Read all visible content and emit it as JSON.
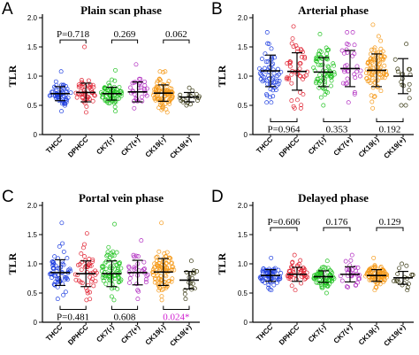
{
  "chart_data": [
    {
      "type": "scatter",
      "panel": "A",
      "title": "Plain scan phase",
      "ylabel": "TLR",
      "ylim": [
        0,
        2.0
      ],
      "yticks": [
        "0",
        "0.5",
        "1.0",
        "1.5",
        "2.0"
      ],
      "categories": [
        "THCC",
        "DPHCC",
        "CK7(-)",
        "CK7(+)",
        "CK19(-)",
        "CK19(+)"
      ],
      "series_colors": [
        "#1f3fe0",
        "#e02030",
        "#22c322",
        "#b02cc0",
        "#f59a1a",
        "#3a3a14"
      ],
      "groups": [
        {
          "mean": 0.7,
          "sd": 0.12,
          "n": 60,
          "min": 0.4,
          "max": 1.08
        },
        {
          "mean": 0.72,
          "sd": 0.16,
          "n": 45,
          "min": 0.38,
          "max": 1.5
        },
        {
          "mean": 0.7,
          "sd": 0.11,
          "n": 70,
          "min": 0.4,
          "max": 1.1
        },
        {
          "mean": 0.73,
          "sd": 0.17,
          "n": 30,
          "min": 0.45,
          "max": 1.2
        },
        {
          "mean": 0.71,
          "sd": 0.14,
          "n": 90,
          "min": 0.38,
          "max": 1.08
        },
        {
          "mean": 0.64,
          "sd": 0.08,
          "n": 18,
          "min": 0.5,
          "max": 0.8
        }
      ],
      "comparisons": [
        {
          "pair": [
            0,
            1
          ],
          "p": "P=0.718",
          "position": "above",
          "significant": false
        },
        {
          "pair": [
            2,
            3
          ],
          "p": "0.269",
          "position": "above",
          "significant": false
        },
        {
          "pair": [
            4,
            5
          ],
          "p": "0.062",
          "position": "above",
          "significant": false
        }
      ]
    },
    {
      "type": "scatter",
      "panel": "B",
      "title": "Arterial phase",
      "ylabel": "TLR",
      "ylim": [
        0,
        2.0
      ],
      "yticks": [
        "0",
        "0.5",
        "1.0",
        "1.5",
        "2.0"
      ],
      "categories": [
        "THCC",
        "DPHCC",
        "CK7(-)",
        "CK7(+)",
        "CK19(-)",
        "CK19(+)"
      ],
      "series_colors": [
        "#1f3fe0",
        "#e02030",
        "#22c322",
        "#b02cc0",
        "#f59a1a",
        "#3a3a14"
      ],
      "groups": [
        {
          "mean": 1.09,
          "sd": 0.27,
          "n": 60,
          "min": 0.55,
          "max": 1.75
        },
        {
          "mean": 1.08,
          "sd": 0.32,
          "n": 45,
          "min": 0.45,
          "max": 1.85
        },
        {
          "mean": 1.07,
          "sd": 0.25,
          "n": 70,
          "min": 0.5,
          "max": 1.72
        },
        {
          "mean": 1.13,
          "sd": 0.31,
          "n": 30,
          "min": 0.55,
          "max": 1.75
        },
        {
          "mean": 1.1,
          "sd": 0.28,
          "n": 90,
          "min": 0.45,
          "max": 1.88
        },
        {
          "mean": 1.0,
          "sd": 0.3,
          "n": 18,
          "min": 0.5,
          "max": 1.55
        }
      ],
      "comparisons": [
        {
          "pair": [
            0,
            1
          ],
          "p": "P=0.964",
          "position": "below",
          "significant": false
        },
        {
          "pair": [
            2,
            3
          ],
          "p": "0.353",
          "position": "below",
          "significant": false
        },
        {
          "pair": [
            4,
            5
          ],
          "p": "0.192",
          "position": "below",
          "significant": false
        }
      ]
    },
    {
      "type": "scatter",
      "panel": "C",
      "title": "Portal vein phase",
      "ylabel": "TLR",
      "ylim": [
        0,
        2.0
      ],
      "yticks": [
        "0",
        "0.5",
        "1.0",
        "1.5",
        "2.0"
      ],
      "categories": [
        "THCC",
        "DPHCC",
        "CK7(-)",
        "CK7(+)",
        "CK19(-)",
        "CK19(+)"
      ],
      "series_colors": [
        "#1f3fe0",
        "#e02030",
        "#22c322",
        "#b02cc0",
        "#f59a1a",
        "#3a3a14"
      ],
      "groups": [
        {
          "mean": 0.85,
          "sd": 0.22,
          "n": 60,
          "min": 0.4,
          "max": 1.7
        },
        {
          "mean": 0.83,
          "sd": 0.22,
          "n": 45,
          "min": 0.38,
          "max": 1.52
        },
        {
          "mean": 0.83,
          "sd": 0.22,
          "n": 70,
          "min": 0.38,
          "max": 1.68
        },
        {
          "mean": 0.85,
          "sd": 0.21,
          "n": 30,
          "min": 0.4,
          "max": 1.4
        },
        {
          "mean": 0.86,
          "sd": 0.23,
          "n": 90,
          "min": 0.38,
          "max": 1.7
        },
        {
          "mean": 0.72,
          "sd": 0.15,
          "n": 18,
          "min": 0.4,
          "max": 1.05
        }
      ],
      "comparisons": [
        {
          "pair": [
            0,
            1
          ],
          "p": "P=0.481",
          "position": "below",
          "significant": false
        },
        {
          "pair": [
            2,
            3
          ],
          "p": "0.608",
          "position": "below",
          "significant": false
        },
        {
          "pair": [
            4,
            5
          ],
          "p": "0.024*",
          "position": "below",
          "significant": true
        }
      ]
    },
    {
      "type": "scatter",
      "panel": "D",
      "title": "Delayed phase",
      "ylabel": "TLR",
      "ylim": [
        0,
        2.0
      ],
      "yticks": [
        "0",
        "0.5",
        "1.0",
        "1.5",
        "2.0"
      ],
      "categories": [
        "THCC",
        "DPHCC",
        "CK7(-)",
        "CK7(+)",
        "CK19(-)",
        "CK19(+)"
      ],
      "series_colors": [
        "#1f3fe0",
        "#e02030",
        "#22c322",
        "#b02cc0",
        "#f59a1a",
        "#3a3a14"
      ],
      "groups": [
        {
          "mean": 0.8,
          "sd": 0.1,
          "n": 60,
          "min": 0.55,
          "max": 1.1
        },
        {
          "mean": 0.82,
          "sd": 0.12,
          "n": 45,
          "min": 0.55,
          "max": 1.15
        },
        {
          "mean": 0.78,
          "sd": 0.1,
          "n": 70,
          "min": 0.5,
          "max": 1.05
        },
        {
          "mean": 0.82,
          "sd": 0.13,
          "n": 30,
          "min": 0.6,
          "max": 1.15
        },
        {
          "mean": 0.8,
          "sd": 0.1,
          "n": 90,
          "min": 0.55,
          "max": 1.1
        },
        {
          "mean": 0.76,
          "sd": 0.11,
          "n": 18,
          "min": 0.55,
          "max": 1.0
        }
      ],
      "comparisons": [
        {
          "pair": [
            0,
            1
          ],
          "p": "P=0.606",
          "position": "above",
          "significant": false
        },
        {
          "pair": [
            2,
            3
          ],
          "p": "0.176",
          "position": "above",
          "significant": false
        },
        {
          "pair": [
            4,
            5
          ],
          "p": "0.129",
          "position": "above",
          "significant": false
        }
      ]
    }
  ],
  "colors": {
    "significant_p": "#d020d0",
    "axis": "#000000",
    "error_bar": "#000000"
  }
}
